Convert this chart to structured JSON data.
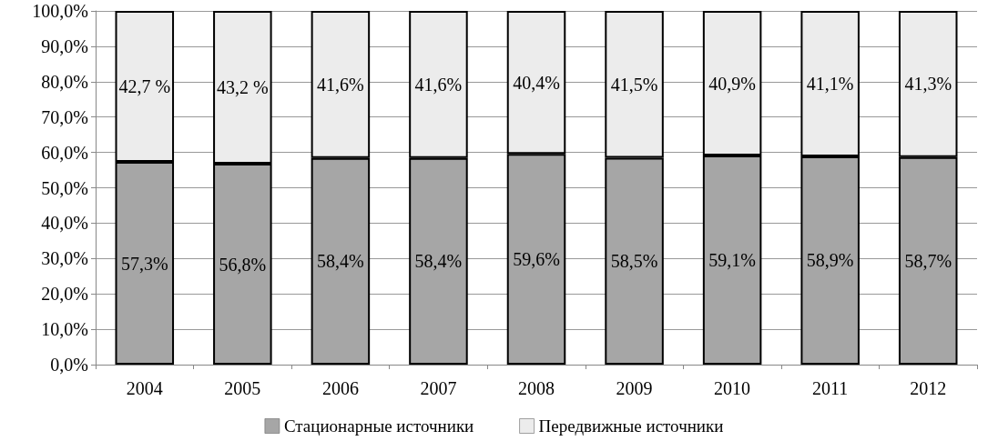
{
  "chart_data": {
    "type": "bar",
    "stacked": true,
    "categories": [
      "2004",
      "2005",
      "2006",
      "2007",
      "2008",
      "2009",
      "2010",
      "2011",
      "2012"
    ],
    "series": [
      {
        "name": "Стационарные источники",
        "color": "#a6a6a6",
        "values": [
          57.3,
          56.8,
          58.4,
          58.4,
          59.6,
          58.5,
          59.1,
          58.9,
          58.7
        ],
        "value_labels": [
          "57,3%",
          "56,8%",
          "58,4%",
          "58,4%",
          "59,6%",
          "58,5%",
          "59,1%",
          "58,9%",
          "58,7%"
        ]
      },
      {
        "name": "Передвижные источники",
        "color": "#ececec",
        "values": [
          42.7,
          43.2,
          41.6,
          41.6,
          40.4,
          41.5,
          40.9,
          41.1,
          41.3
        ],
        "value_labels": [
          "42,7 %",
          "43,2 %",
          "41,6%",
          "41,6%",
          "40,4%",
          "41,5%",
          "40,9%",
          "41,1%",
          "41,3%"
        ]
      }
    ],
    "ylim": [
      0,
      100
    ],
    "yticks": [
      {
        "value": 0,
        "label": "0,0%"
      },
      {
        "value": 10,
        "label": "10,0%"
      },
      {
        "value": 20,
        "label": "20,0%"
      },
      {
        "value": 30,
        "label": "30,0%"
      },
      {
        "value": 40,
        "label": "40,0%"
      },
      {
        "value": 50,
        "label": "50,0%"
      },
      {
        "value": 60,
        "label": "60,0%"
      },
      {
        "value": 70,
        "label": "70,0%"
      },
      {
        "value": 80,
        "label": "80,0%"
      },
      {
        "value": 90,
        "label": "90,0%"
      },
      {
        "value": 100,
        "label": "100,0%"
      }
    ],
    "grid": "y",
    "legend": "bottom"
  }
}
